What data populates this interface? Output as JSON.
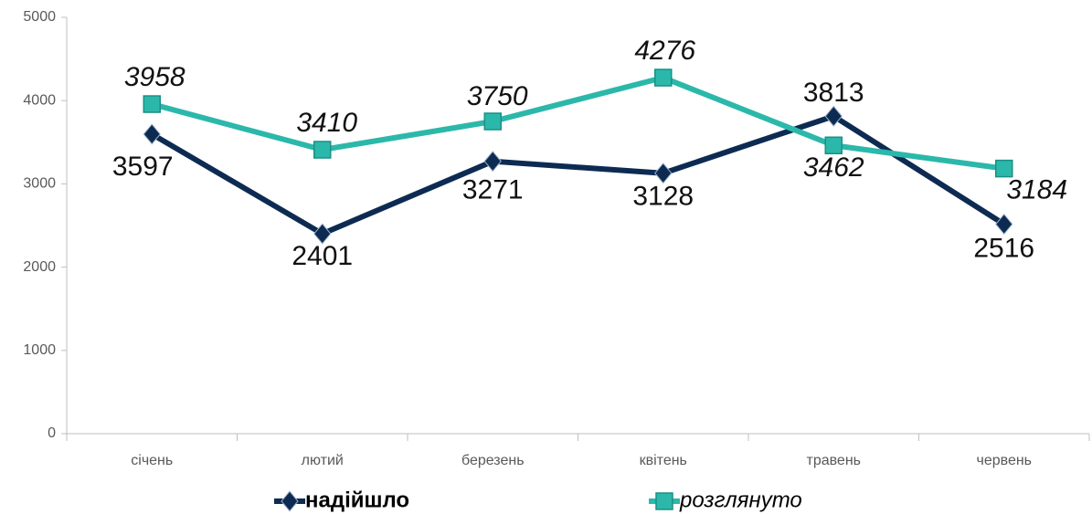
{
  "chart_data": {
    "type": "line",
    "categories": [
      "січень",
      "лютий",
      "березень",
      "квітень",
      "травень",
      "червень"
    ],
    "series": [
      {
        "name": "надійшло",
        "color": "#0d2b52",
        "marker": "diamond",
        "values": [
          3597,
          2401,
          3271,
          3128,
          3813,
          2516
        ]
      },
      {
        "name": "розглянуто",
        "color": "#2bb8aa",
        "marker": "square",
        "values": [
          3958,
          3410,
          3750,
          4276,
          3462,
          3184
        ]
      }
    ],
    "ylim": [
      0,
      5000
    ],
    "yticks": [
      0,
      1000,
      2000,
      3000,
      4000,
      5000
    ],
    "grid": false,
    "legend": "bottom"
  }
}
